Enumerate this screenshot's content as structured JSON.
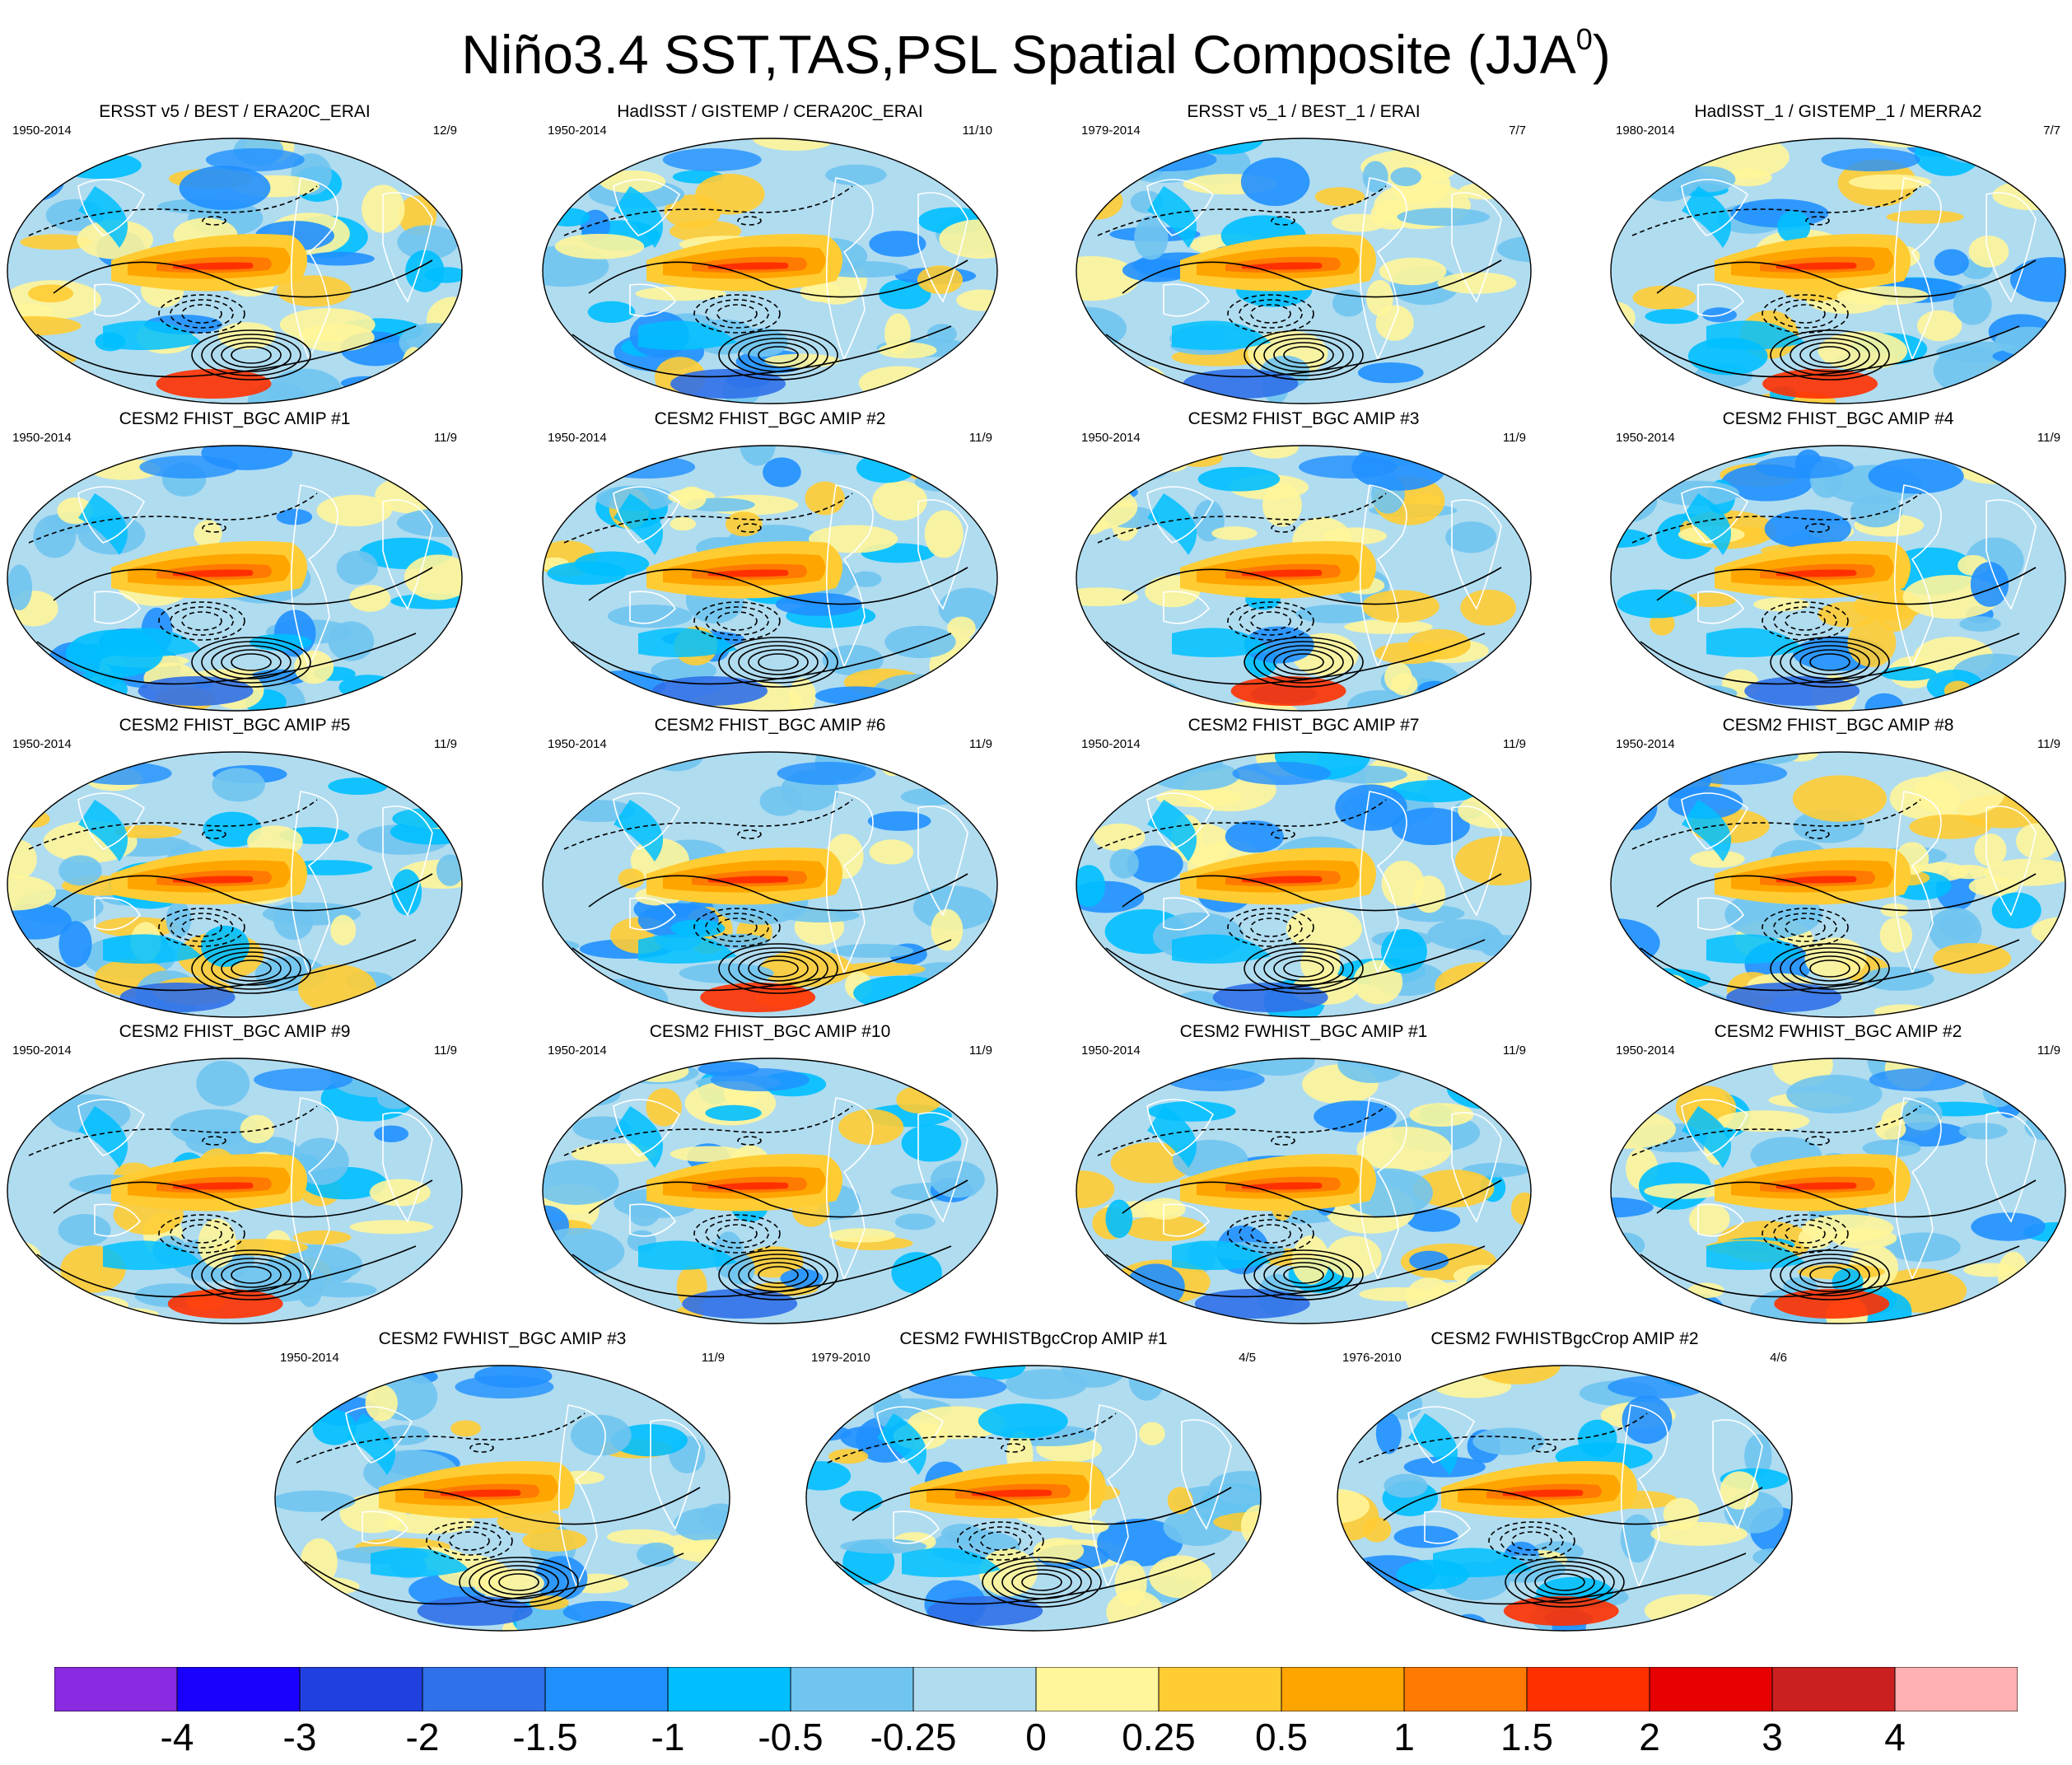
{
  "title": {
    "main": "Niño3.4 SST,TAS,PSL Spatial Composite (JJA",
    "superscript": "0",
    "close": ")"
  },
  "panels": [
    {
      "title": "ERSST v5 / BEST / ERA20C_ERAI",
      "years": "1950-2014",
      "count": "12/9"
    },
    {
      "title": "HadISST / GISTEMP / CERA20C_ERAI",
      "years": "1950-2014",
      "count": "11/10"
    },
    {
      "title": "ERSST v5_1 / BEST_1 / ERAI",
      "years": "1979-2014",
      "count": "7/7"
    },
    {
      "title": "HadISST_1 / GISTEMP_1 / MERRA2",
      "years": "1980-2014",
      "count": "7/7"
    },
    {
      "title": "CESM2 FHIST_BGC AMIP #1",
      "years": "1950-2014",
      "count": "11/9"
    },
    {
      "title": "CESM2 FHIST_BGC AMIP #2",
      "years": "1950-2014",
      "count": "11/9"
    },
    {
      "title": "CESM2 FHIST_BGC AMIP #3",
      "years": "1950-2014",
      "count": "11/9"
    },
    {
      "title": "CESM2 FHIST_BGC AMIP #4",
      "years": "1950-2014",
      "count": "11/9"
    },
    {
      "title": "CESM2 FHIST_BGC AMIP #5",
      "years": "1950-2014",
      "count": "11/9"
    },
    {
      "title": "CESM2 FHIST_BGC AMIP #6",
      "years": "1950-2014",
      "count": "11/9"
    },
    {
      "title": "CESM2 FHIST_BGC AMIP #7",
      "years": "1950-2014",
      "count": "11/9"
    },
    {
      "title": "CESM2 FHIST_BGC AMIP #8",
      "years": "1950-2014",
      "count": "11/9"
    },
    {
      "title": "CESM2 FHIST_BGC AMIP #9",
      "years": "1950-2014",
      "count": "11/9"
    },
    {
      "title": "CESM2 FHIST_BGC AMIP #10",
      "years": "1950-2014",
      "count": "11/9"
    },
    {
      "title": "CESM2 FWHIST_BGC AMIP #1",
      "years": "1950-2014",
      "count": "11/9"
    },
    {
      "title": "CESM2 FWHIST_BGC AMIP #2",
      "years": "1950-2014",
      "count": "11/9"
    },
    {
      "title": "CESM2 FWHIST_BGC AMIP #3",
      "years": "1950-2014",
      "count": "11/9"
    },
    {
      "title": "CESM2 FWHISTBgcCrop AMIP #1",
      "years": "1979-2010",
      "count": "4/5"
    },
    {
      "title": "CESM2 FWHISTBgcCrop AMIP #2",
      "years": "1976-2010",
      "count": "4/6"
    }
  ],
  "colorbar": {
    "colors": [
      "#8a2be2",
      "#1a00ff",
      "#2040e0",
      "#3070e8",
      "#2090ff",
      "#00bfff",
      "#70c4f0",
      "#b0dcf0",
      "#fff59a",
      "#ffcc33",
      "#ffa500",
      "#ff7a00",
      "#ff3000",
      "#e60000",
      "#cc2020",
      "#ffb0b0"
    ],
    "labels": [
      "-4",
      "-3",
      "-2",
      "-1.5",
      "-1",
      "-0.5",
      "-0.25",
      "0",
      "0.25",
      "0.5",
      "1",
      "1.5",
      "2",
      "3",
      "4"
    ]
  }
}
